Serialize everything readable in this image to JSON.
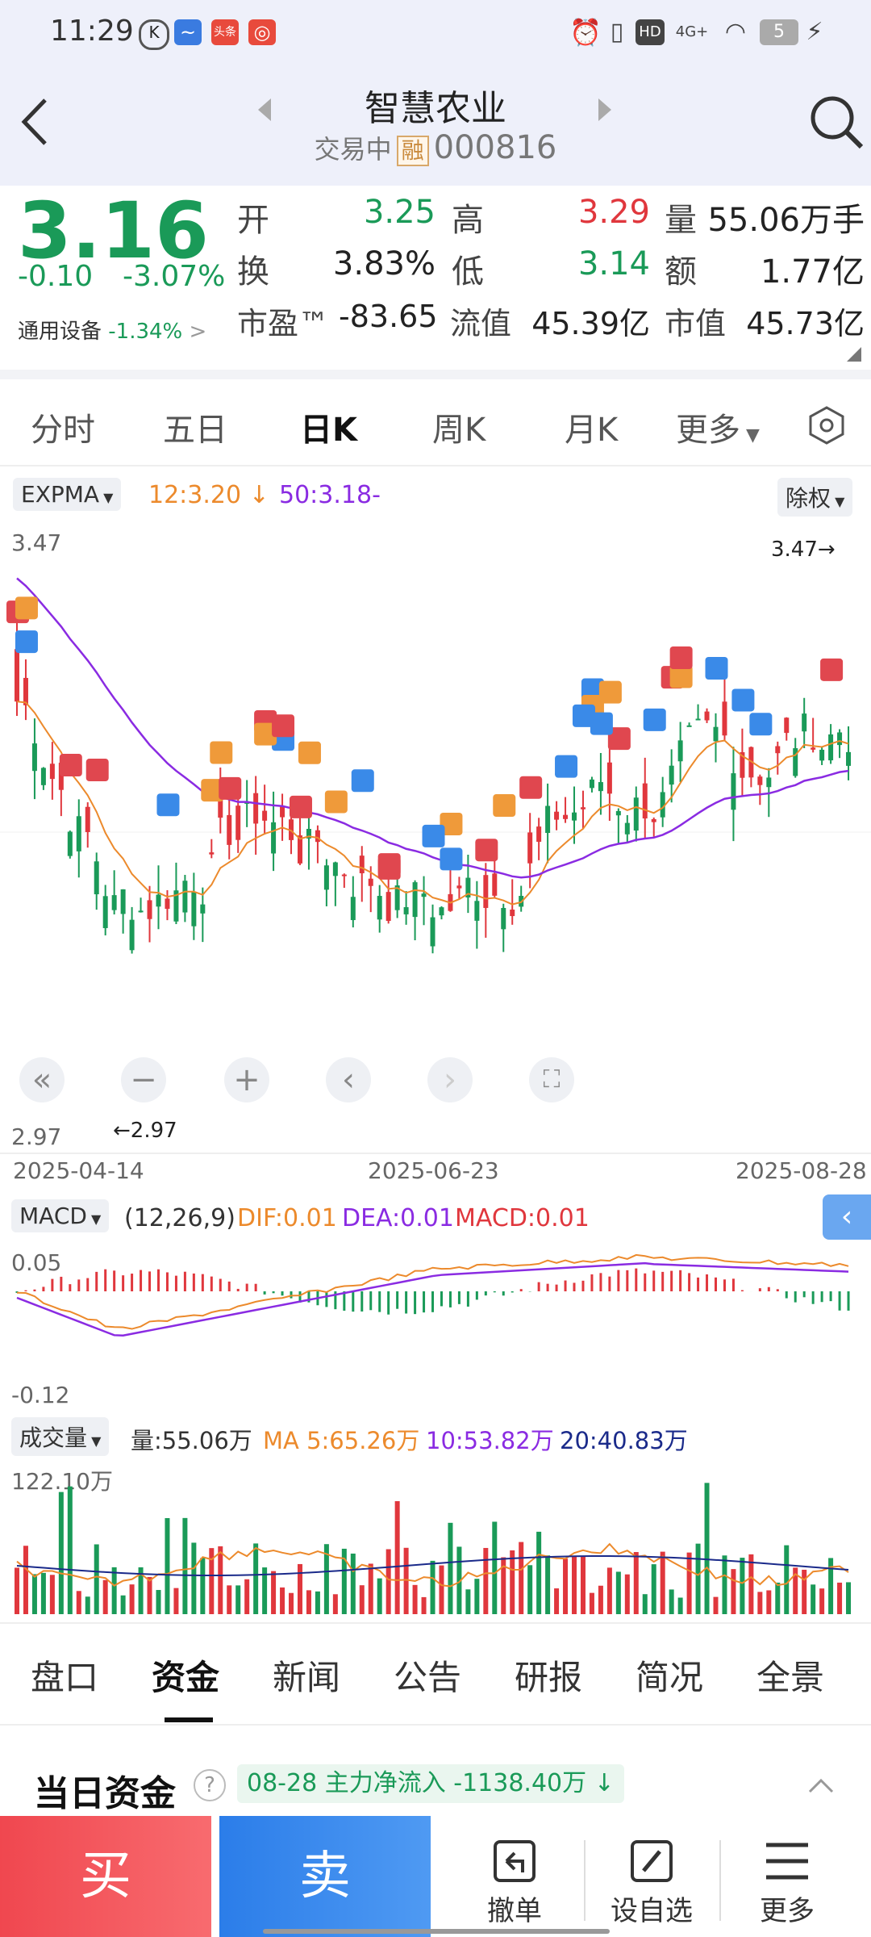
{
  "status_bar": {
    "time": "11:29",
    "battery": "5",
    "network": "4G+",
    "hd": "HD",
    "app_badges": [
      "头条"
    ]
  },
  "header": {
    "title": "智慧农业",
    "trade_status": "交易中",
    "margin_badge": "融",
    "code": "000816"
  },
  "quote": {
    "price": "3.16",
    "change": "-0.10",
    "change_pct": "-3.07%",
    "industry": "通用设备",
    "industry_pct": "-1.34%",
    "labels": {
      "open": "开",
      "high": "高",
      "volume": "量",
      "turnover": "换",
      "low": "低",
      "amount": "额",
      "pe": "市盈™",
      "float_cap": "流值",
      "market_cap": "市值"
    },
    "values": {
      "open": "3.25",
      "high": "3.29",
      "volume": "55.06万手",
      "turnover": "3.83%",
      "low": "3.14",
      "amount": "1.77亿",
      "pe": "-83.65",
      "float_cap": "45.39亿",
      "market_cap": "45.73亿"
    }
  },
  "chart_tabs": [
    "分时",
    "五日",
    "日K",
    "周K",
    "月K",
    "更多"
  ],
  "active_tab": "日K",
  "kline": {
    "indicator": "EXPMA",
    "ma12": "12:3.20",
    "ma50": "50:3.18-",
    "adjust": "除权",
    "y_max": "3.47",
    "y_min": "2.97",
    "max_label": "3.47",
    "min_label": "2.97",
    "dates": [
      "2025-04-14",
      "2025-06-23",
      "2025-08-28"
    ]
  },
  "macd": {
    "name": "MACD",
    "params": "(12,26,9)",
    "dif": "DIF:0.01",
    "dea": "DEA:0.01",
    "macd": "MACD:0.01",
    "y_top": "0.05",
    "y_bottom": "-0.12"
  },
  "volume": {
    "name": "成交量",
    "vol": "量:55.06万",
    "ma5": "MA 5:65.26万",
    "ma10": "10:53.82万",
    "ma20": "20:40.83万",
    "y_top": "122.10万"
  },
  "bottom_tabs": [
    "盘口",
    "资金",
    "新闻",
    "公告",
    "研报",
    "简况",
    "全景"
  ],
  "active_bottom_tab": "资金",
  "fund": {
    "title": "当日资金",
    "summary": "08-28 主力净流入 -1138.40万"
  },
  "actions": {
    "buy": "买",
    "sell": "卖",
    "cancel": "撤单",
    "watchlist": "设自选",
    "more": "更多"
  },
  "colors": {
    "up": "#e0373d",
    "down": "#1a9a58",
    "orange": "#ec8a2c",
    "purple": "#8a2be2",
    "buy": "#f0474f",
    "sell": "#2b7de9"
  }
}
